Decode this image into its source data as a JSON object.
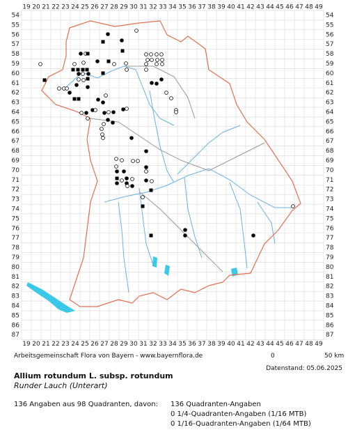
{
  "map": {
    "columns": [
      19,
      20,
      21,
      22,
      23,
      24,
      25,
      26,
      27,
      28,
      29,
      30,
      31,
      32,
      33,
      34,
      35,
      36,
      37,
      38,
      39,
      40,
      41,
      42,
      43,
      44,
      45,
      46,
      47,
      48,
      49
    ],
    "rows": [
      54,
      55,
      56,
      57,
      58,
      59,
      60,
      61,
      62,
      63,
      64,
      65,
      66,
      67,
      68,
      69,
      70,
      71,
      72,
      73,
      74,
      75,
      76,
      77,
      78,
      79,
      80,
      81,
      82,
      83,
      84,
      85,
      86,
      87
    ]
  },
  "footer": {
    "credit": "Arbeitsgemeinschaft Flora von Bayern - www.bayernflora.de",
    "scale_start": "0",
    "scale_end": "50 km",
    "date": "Datenstand: 05.06.2025",
    "title": "Allium rotundum L. subsp. rotundum",
    "subtitle": "Runder Lauch (Unterart)",
    "summary": "136 Angaben aus 98 Quadranten, davon:",
    "details": [
      "136 Quadranten-Angaben",
      "0 1/4-Quadranten-Angaben (1/16 MTB)",
      "0 1/16-Quadranten-Angaben (1/64 MTB)"
    ]
  }
}
